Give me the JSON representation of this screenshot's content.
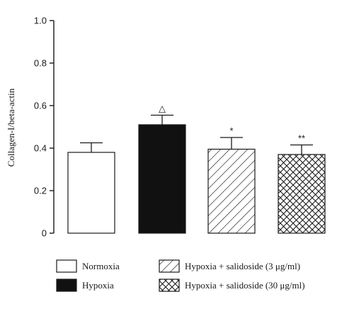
{
  "chart_data": {
    "type": "bar",
    "categories": [
      "Normoxia",
      "Hypoxia",
      "Hypoxia + salidoside (3 μg/ml)",
      "Hypoxia + salidoside (30 μg/ml)"
    ],
    "values": [
      0.38,
      0.51,
      0.395,
      0.37
    ],
    "errors": [
      0.045,
      0.045,
      0.055,
      0.045
    ],
    "significance": [
      "",
      "△",
      "*",
      "**"
    ],
    "fills": [
      "white",
      "black",
      "diagonal-hatch",
      "crosshatch"
    ],
    "title": "",
    "xlabel": "",
    "ylabel": "Collagen-I/beta-actin",
    "ylim": [
      0,
      1.0
    ],
    "yticks": [
      "0",
      "0.2",
      "0.4",
      "0.6",
      "0.8",
      "1.0"
    ],
    "ytick_values": [
      0,
      0.2,
      0.4,
      0.6,
      0.8,
      1.0
    ],
    "legend": {
      "placement": "bottom",
      "entries": [
        {
          "label": "Normoxia",
          "fill": "white"
        },
        {
          "label": "Hypoxia",
          "fill": "black"
        },
        {
          "label": "Hypoxia + salidoside (3 μg/ml)",
          "fill": "diagonal-hatch"
        },
        {
          "label": "Hypoxia + salidoside (30 μg/ml)",
          "fill": "crosshatch"
        }
      ]
    },
    "grid": false
  }
}
